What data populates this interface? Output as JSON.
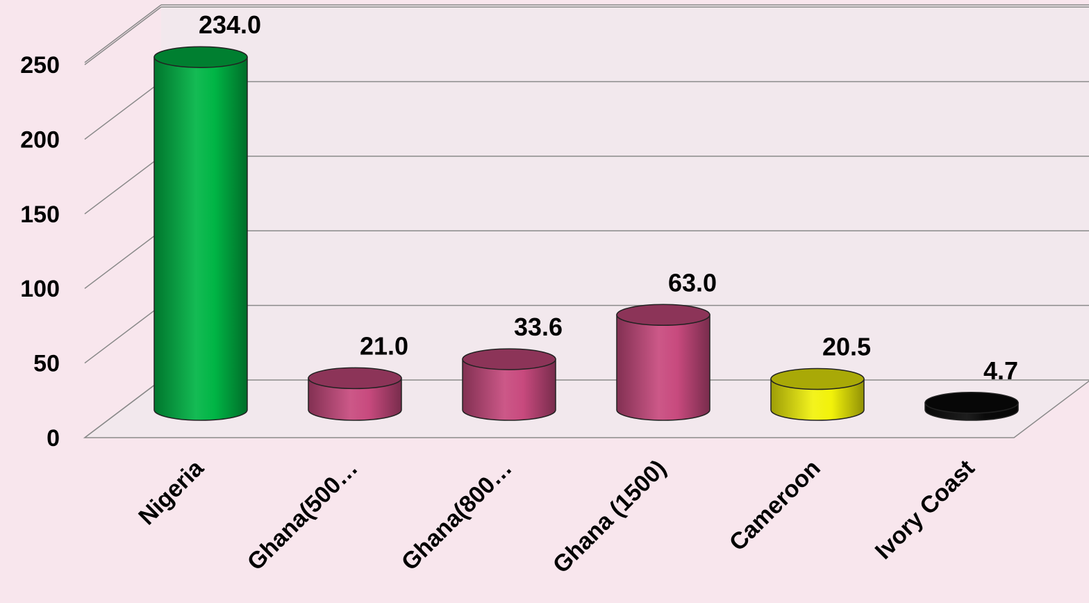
{
  "chart_data": {
    "type": "bar",
    "style": "3d-cylinder",
    "categories": [
      "Nigeria",
      "Ghana(500…",
      "Ghana(800…",
      "Ghana (1500)",
      "Cameroon",
      "Ivory Coast"
    ],
    "values": [
      234.0,
      21.0,
      33.6,
      63.0,
      20.5,
      4.7
    ],
    "data_labels": [
      "234.0",
      "21.0",
      "33.6",
      "63.0",
      "20.5",
      "4.7"
    ],
    "bar_colors": [
      "#00b545",
      "#c84a7e",
      "#c84a7e",
      "#c84a7e",
      "#f2f20a",
      "#0a0a0a"
    ],
    "yticks": [
      "0",
      "50",
      "100",
      "150",
      "200",
      "250"
    ],
    "ytick_values": [
      0,
      50,
      100,
      150,
      200,
      250
    ],
    "ylim": [
      0,
      250
    ],
    "grid": true,
    "legend": false,
    "title": "",
    "xlabel": "",
    "ylabel": ""
  }
}
